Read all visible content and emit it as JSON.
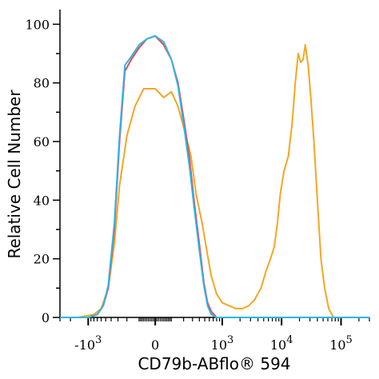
{
  "chart_data": {
    "type": "line",
    "title": "",
    "xlabel": "CD79b-ABflo® 594",
    "ylabel": "Relative Cell Number",
    "x_scale": "biexponential",
    "xlim": [
      -3000,
      300000
    ],
    "ylim": [
      0,
      105
    ],
    "yticks": [
      0,
      20,
      40,
      60,
      80,
      100
    ],
    "xticks": [
      {
        "value": -1000,
        "base": "-10",
        "exp": "3"
      },
      {
        "value": 0,
        "base": "0",
        "exp": ""
      },
      {
        "value": 1000,
        "base": "10",
        "exp": "3"
      },
      {
        "value": 10000,
        "base": "10",
        "exp": "4"
      },
      {
        "value": 100000,
        "base": "10",
        "exp": "5"
      }
    ],
    "grid": false,
    "series": [
      {
        "color": "#f5a623",
        "points": [
          [
            -3000,
            0
          ],
          [
            -1500,
            0
          ],
          [
            -800,
            1
          ],
          [
            -600,
            3
          ],
          [
            -450,
            10
          ],
          [
            -350,
            25
          ],
          [
            -280,
            45
          ],
          [
            -200,
            62
          ],
          [
            -130,
            72
          ],
          [
            -70,
            78
          ],
          [
            0,
            78
          ],
          [
            50,
            75
          ],
          [
            100,
            77
          ],
          [
            150,
            72
          ],
          [
            200,
            65
          ],
          [
            280,
            55
          ],
          [
            350,
            42
          ],
          [
            450,
            32
          ],
          [
            550,
            22
          ],
          [
            650,
            14
          ],
          [
            800,
            8
          ],
          [
            1000,
            5
          ],
          [
            1300,
            4
          ],
          [
            1700,
            3
          ],
          [
            2200,
            3
          ],
          [
            2800,
            4
          ],
          [
            3500,
            6
          ],
          [
            4500,
            10
          ],
          [
            5500,
            16
          ],
          [
            6500,
            20
          ],
          [
            7500,
            24
          ],
          [
            8500,
            32
          ],
          [
            9500,
            42
          ],
          [
            11000,
            50
          ],
          [
            13000,
            55
          ],
          [
            15000,
            66
          ],
          [
            17000,
            80
          ],
          [
            19000,
            90
          ],
          [
            21000,
            87
          ],
          [
            23000,
            88
          ],
          [
            25000,
            93
          ],
          [
            28000,
            86
          ],
          [
            31000,
            75
          ],
          [
            35000,
            60
          ],
          [
            40000,
            40
          ],
          [
            46000,
            20
          ],
          [
            53000,
            10
          ],
          [
            62000,
            3
          ],
          [
            75000,
            0
          ],
          [
            300000,
            0
          ]
        ]
      },
      {
        "color": "#e8474f",
        "points": [
          [
            -3000,
            0
          ],
          [
            -1000,
            0
          ],
          [
            -700,
            1
          ],
          [
            -550,
            4
          ],
          [
            -450,
            10
          ],
          [
            -350,
            30
          ],
          [
            -280,
            60
          ],
          [
            -220,
            84
          ],
          [
            -160,
            88
          ],
          [
            -100,
            92
          ],
          [
            -50,
            95
          ],
          [
            0,
            96
          ],
          [
            50,
            93
          ],
          [
            100,
            88
          ],
          [
            150,
            80
          ],
          [
            200,
            68
          ],
          [
            260,
            55
          ],
          [
            320,
            40
          ],
          [
            400,
            25
          ],
          [
            480,
            12
          ],
          [
            560,
            5
          ],
          [
            650,
            2
          ],
          [
            800,
            0
          ],
          [
            300000,
            0
          ]
        ]
      },
      {
        "color": "#2eb5e8",
        "points": [
          [
            -3000,
            0
          ],
          [
            -1000,
            0
          ],
          [
            -700,
            1
          ],
          [
            -550,
            4
          ],
          [
            -450,
            11
          ],
          [
            -350,
            32
          ],
          [
            -280,
            62
          ],
          [
            -220,
            86
          ],
          [
            -160,
            89
          ],
          [
            -100,
            93
          ],
          [
            -50,
            95
          ],
          [
            0,
            96
          ],
          [
            50,
            94
          ],
          [
            100,
            88
          ],
          [
            150,
            79
          ],
          [
            200,
            66
          ],
          [
            260,
            52
          ],
          [
            320,
            38
          ],
          [
            400,
            23
          ],
          [
            480,
            11
          ],
          [
            560,
            4
          ],
          [
            650,
            1
          ],
          [
            800,
            0
          ],
          [
            300000,
            0
          ]
        ]
      }
    ]
  }
}
